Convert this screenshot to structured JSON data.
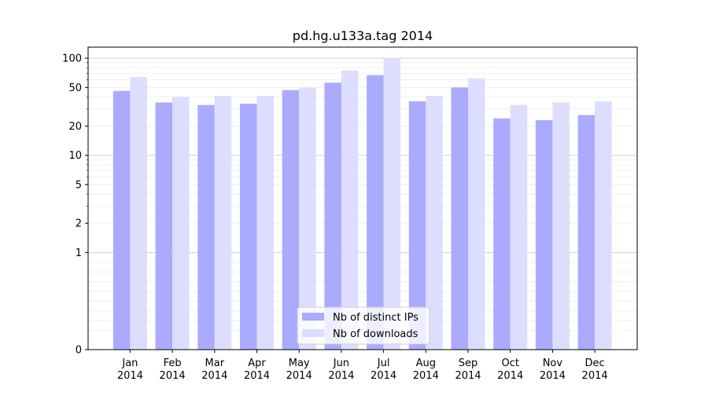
{
  "chart_data": {
    "type": "bar",
    "title": "pd.hg.u133a.tag 2014",
    "xlabel": "",
    "ylabel": "",
    "yscale": "symlog",
    "ylim": [
      0,
      130
    ],
    "grid": true,
    "legend_position": "bottom-center",
    "yticks": [
      {
        "value": 0,
        "label": "0"
      },
      {
        "value": 1,
        "label": "1"
      },
      {
        "value": 2,
        "label": "2"
      },
      {
        "value": 5,
        "label": "5"
      },
      {
        "value": 10,
        "label": "10"
      },
      {
        "value": 20,
        "label": "20"
      },
      {
        "value": 50,
        "label": "50"
      },
      {
        "value": 100,
        "label": "100"
      }
    ],
    "categories": [
      {
        "month": "Jan",
        "year": "2014"
      },
      {
        "month": "Feb",
        "year": "2014"
      },
      {
        "month": "Mar",
        "year": "2014"
      },
      {
        "month": "Apr",
        "year": "2014"
      },
      {
        "month": "May",
        "year": "2014"
      },
      {
        "month": "Jun",
        "year": "2014"
      },
      {
        "month": "Jul",
        "year": "2014"
      },
      {
        "month": "Aug",
        "year": "2014"
      },
      {
        "month": "Sep",
        "year": "2014"
      },
      {
        "month": "Oct",
        "year": "2014"
      },
      {
        "month": "Nov",
        "year": "2014"
      },
      {
        "month": "Dec",
        "year": "2014"
      }
    ],
    "series": [
      {
        "name": "Nb of distinct IPs",
        "color": "#aaaaff",
        "values": [
          46,
          35,
          33,
          34,
          47,
          56,
          67,
          36,
          50,
          24,
          23,
          26
        ]
      },
      {
        "name": "Nb of downloads",
        "color": "#ddddff",
        "values": [
          64,
          40,
          41,
          41,
          50,
          75,
          100,
          41,
          62,
          33,
          35,
          36
        ]
      }
    ]
  }
}
